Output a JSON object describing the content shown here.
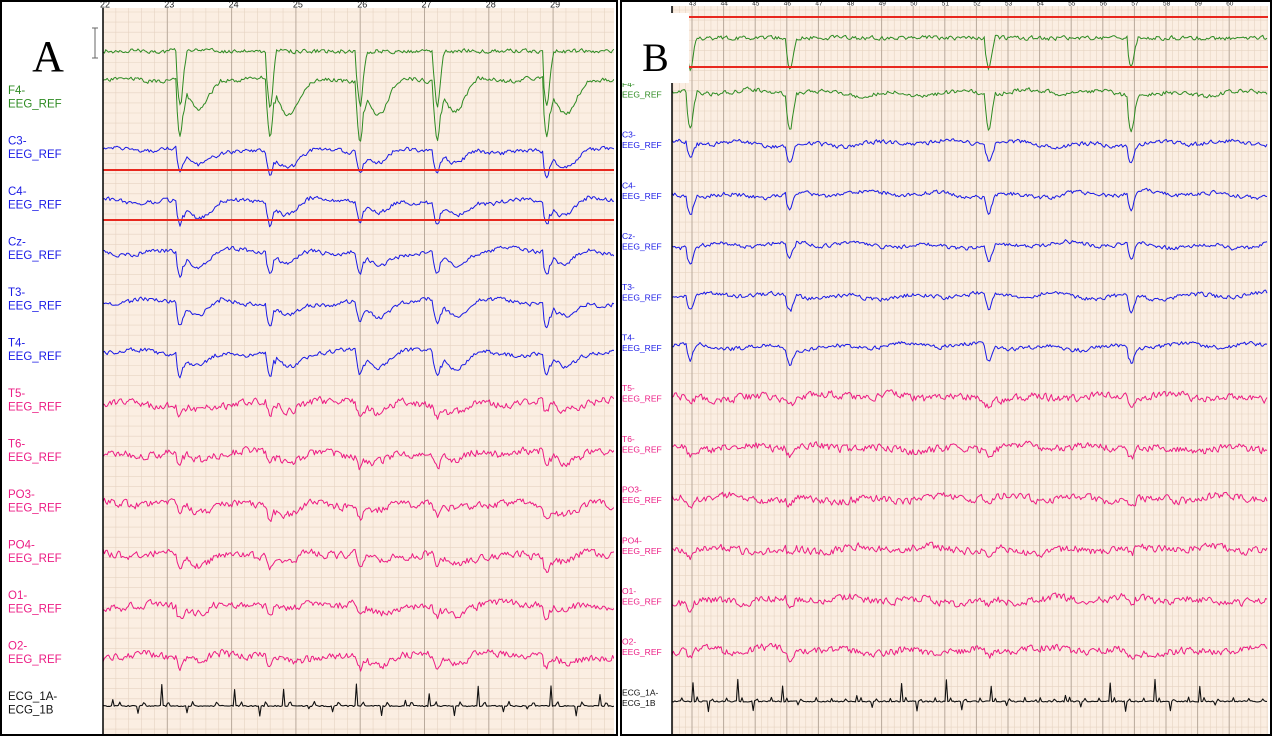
{
  "panels": [
    {
      "id": "A",
      "letter": "A",
      "time_ticks": [
        "22",
        "23",
        "24",
        "25",
        "26",
        "27",
        "28",
        "29",
        "30"
      ],
      "discharge_times": [
        23.2,
        24.6,
        26.0,
        27.2,
        28.9
      ],
      "channels": [
        {
          "name": "F4-",
          "ref": "EEG_REF",
          "color": "#2e8b22"
        },
        {
          "name": "C3-",
          "ref": "EEG_REF",
          "color": "#1a1ae6"
        },
        {
          "name": "C4-",
          "ref": "EEG_REF",
          "color": "#1a1ae6"
        },
        {
          "name": "Cz-",
          "ref": "EEG_REF",
          "color": "#1a1ae6"
        },
        {
          "name": "T3-",
          "ref": "EEG_REF",
          "color": "#1a1ae6"
        },
        {
          "name": "T4-",
          "ref": "EEG_REF",
          "color": "#1a1ae6"
        },
        {
          "name": "T5-",
          "ref": "EEG_REF",
          "color": "#ec1c84"
        },
        {
          "name": "T6-",
          "ref": "EEG_REF",
          "color": "#ec1c84"
        },
        {
          "name": "PO3-",
          "ref": "EEG_REF",
          "color": "#ec1c84"
        },
        {
          "name": "PO4-",
          "ref": "EEG_REF",
          "color": "#ec1c84"
        },
        {
          "name": "O1-",
          "ref": "EEG_REF",
          "color": "#ec1c84"
        },
        {
          "name": "O2-",
          "ref": "EEG_REF",
          "color": "#ec1c84"
        },
        {
          "name": "ECG_1A-",
          "ref": "ECG_1B",
          "color": "#111111"
        }
      ]
    },
    {
      "id": "B",
      "letter": "B",
      "time_ticks": [
        "43",
        "44",
        "45",
        "46",
        "47",
        "48",
        "49",
        "50",
        "51",
        "52",
        "53",
        "54",
        "55",
        "56",
        "57",
        "58",
        "59",
        "60"
      ],
      "discharge_times": [
        42.95,
        46.1,
        52.4,
        56.9
      ],
      "channels": [
        {
          "name": "F4-",
          "ref": "EEG_REF",
          "color": "#2e8b22"
        },
        {
          "name": "C3-",
          "ref": "EEG_REF",
          "color": "#1a1ae6"
        },
        {
          "name": "C4-",
          "ref": "EEG_REF",
          "color": "#1a1ae6"
        },
        {
          "name": "Cz-",
          "ref": "EEG_REF",
          "color": "#1a1ae6"
        },
        {
          "name": "T3-",
          "ref": "EEG_REF",
          "color": "#1a1ae6"
        },
        {
          "name": "T4-",
          "ref": "EEG_REF",
          "color": "#1a1ae6"
        },
        {
          "name": "T5-",
          "ref": "EEG_REF",
          "color": "#ec1c84"
        },
        {
          "name": "T6-",
          "ref": "EEG_REF",
          "color": "#ec1c84"
        },
        {
          "name": "PO3-",
          "ref": "EEG_REF",
          "color": "#ec1c84"
        },
        {
          "name": "PO4-",
          "ref": "EEG_REF",
          "color": "#ec1c84"
        },
        {
          "name": "O1-",
          "ref": "EEG_REF",
          "color": "#ec1c84"
        },
        {
          "name": "O2-",
          "ref": "EEG_REF",
          "color": "#ec1c84"
        },
        {
          "name": "ECG_1A-",
          "ref": "ECG_1B",
          "color": "#111111"
        }
      ]
    }
  ],
  "colors": {
    "grid_background": "#fbeee2",
    "grid_minor": "#e6d3c2",
    "grid_major": "#b9aa9c",
    "marker_line": "#e8281e"
  }
}
